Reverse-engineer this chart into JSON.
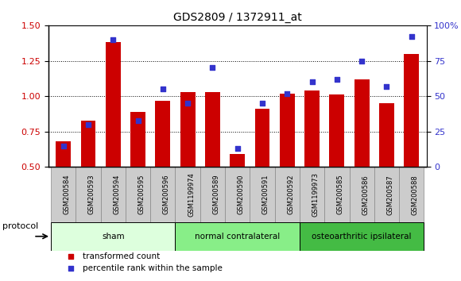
{
  "title": "GDS2809 / 1372911_at",
  "categories": [
    "GSM200584",
    "GSM200593",
    "GSM200594",
    "GSM200595",
    "GSM200596",
    "GSM1199974",
    "GSM200589",
    "GSM200590",
    "GSM200591",
    "GSM200592",
    "GSM1199973",
    "GSM200585",
    "GSM200586",
    "GSM200587",
    "GSM200588"
  ],
  "bar_values": [
    0.68,
    0.83,
    1.38,
    0.89,
    0.97,
    1.03,
    1.03,
    0.59,
    0.91,
    1.02,
    1.04,
    1.01,
    1.12,
    0.95,
    1.3
  ],
  "dot_values": [
    15,
    30,
    90,
    33,
    55,
    45,
    70,
    13,
    45,
    52,
    60,
    62,
    75,
    57,
    92
  ],
  "ylim_left": [
    0.5,
    1.5
  ],
  "ylim_right": [
    0,
    100
  ],
  "yticks_left": [
    0.5,
    0.75,
    1.0,
    1.25,
    1.5
  ],
  "yticks_right": [
    0,
    25,
    50,
    75,
    100
  ],
  "ytick_labels_right": [
    "0",
    "25",
    "50",
    "75",
    "100%"
  ],
  "bar_color": "#cc0000",
  "dot_color": "#3333cc",
  "grid_color": "#000000",
  "protocol_groups": [
    {
      "label": "sham",
      "start": 0,
      "end": 4,
      "color": "#ddffdd"
    },
    {
      "label": "normal contralateral",
      "start": 5,
      "end": 9,
      "color": "#88ee88"
    },
    {
      "label": "osteoarthritic ipsilateral",
      "start": 10,
      "end": 14,
      "color": "#44bb44"
    }
  ],
  "protocol_label": "protocol",
  "legend_bar_label": "transformed count",
  "legend_dot_label": "percentile rank within the sample",
  "bg_color": "#ffffff",
  "plot_bg_color": "#ffffff",
  "tick_label_bg": "#cccccc",
  "tick_label_border": "#888888"
}
